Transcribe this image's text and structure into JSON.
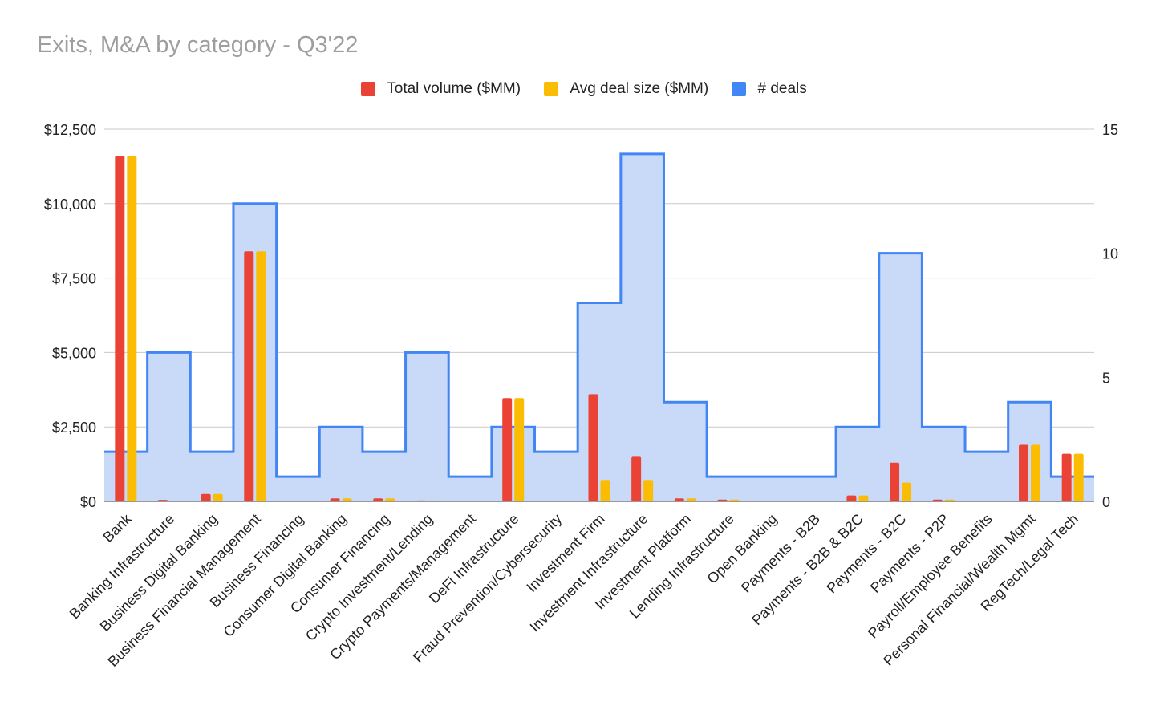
{
  "chart_data": {
    "type": "bar",
    "title": "Exits, M&A by category - Q3'22",
    "categories": [
      "Bank",
      "Banking Infrastructure",
      "Business Digital Banking",
      "Business Financial Management",
      "Business Financing",
      "Consumer Digital Banking",
      "Consumer Financing",
      "Crypto Investment/Lending",
      "Crypto Payments/Management",
      "DeFi Infrastructure",
      "Fraud Prevention/Cybersecurity",
      "Investment Firm",
      "Investment Infrastructure",
      "Investment Platform",
      "Lending Infrastructure",
      "Open Banking",
      "Payments - B2B",
      "Payments - B2B & B2C",
      "Payments - B2C",
      "Payments - P2P",
      "Payroll/Employee Benefits",
      "Personal Financial/Wealth Mgmt",
      "RegTech/Legal Tech"
    ],
    "series": [
      {
        "name": "Total volume ($MM)",
        "color": "#ea4335",
        "axis": "left",
        "render": "bar",
        "values": [
          11600,
          50,
          250,
          8400,
          0,
          100,
          100,
          30,
          0,
          3470,
          0,
          3600,
          1500,
          100,
          60,
          0,
          0,
          200,
          1300,
          60,
          0,
          1900,
          1600
        ]
      },
      {
        "name": "Avg deal size ($MM)",
        "color": "#fbbc04",
        "axis": "left",
        "render": "bar",
        "values": [
          11600,
          25,
          250,
          8400,
          0,
          100,
          100,
          30,
          0,
          3470,
          0,
          720,
          720,
          100,
          60,
          0,
          0,
          200,
          630,
          60,
          0,
          1900,
          1600
        ]
      },
      {
        "name": "# deals",
        "color": "#4285f4",
        "axis": "right",
        "render": "stepped-area",
        "values": [
          2,
          6,
          2,
          12,
          1,
          3,
          2,
          6,
          1,
          3,
          2,
          8,
          14,
          4,
          1,
          1,
          1,
          3,
          10,
          3,
          2,
          4,
          1
        ]
      }
    ],
    "y_left": {
      "ticks": [
        "$0",
        "$2,500",
        "$5,000",
        "$7,500",
        "$10,000",
        "$12,500"
      ],
      "min": 0,
      "max": 12500,
      "step": 2500
    },
    "y_right": {
      "ticks": [
        "0",
        "5",
        "10",
        "15"
      ],
      "min": 0,
      "max": 15,
      "step": 5
    },
    "grid": true,
    "legend_position": "top"
  }
}
